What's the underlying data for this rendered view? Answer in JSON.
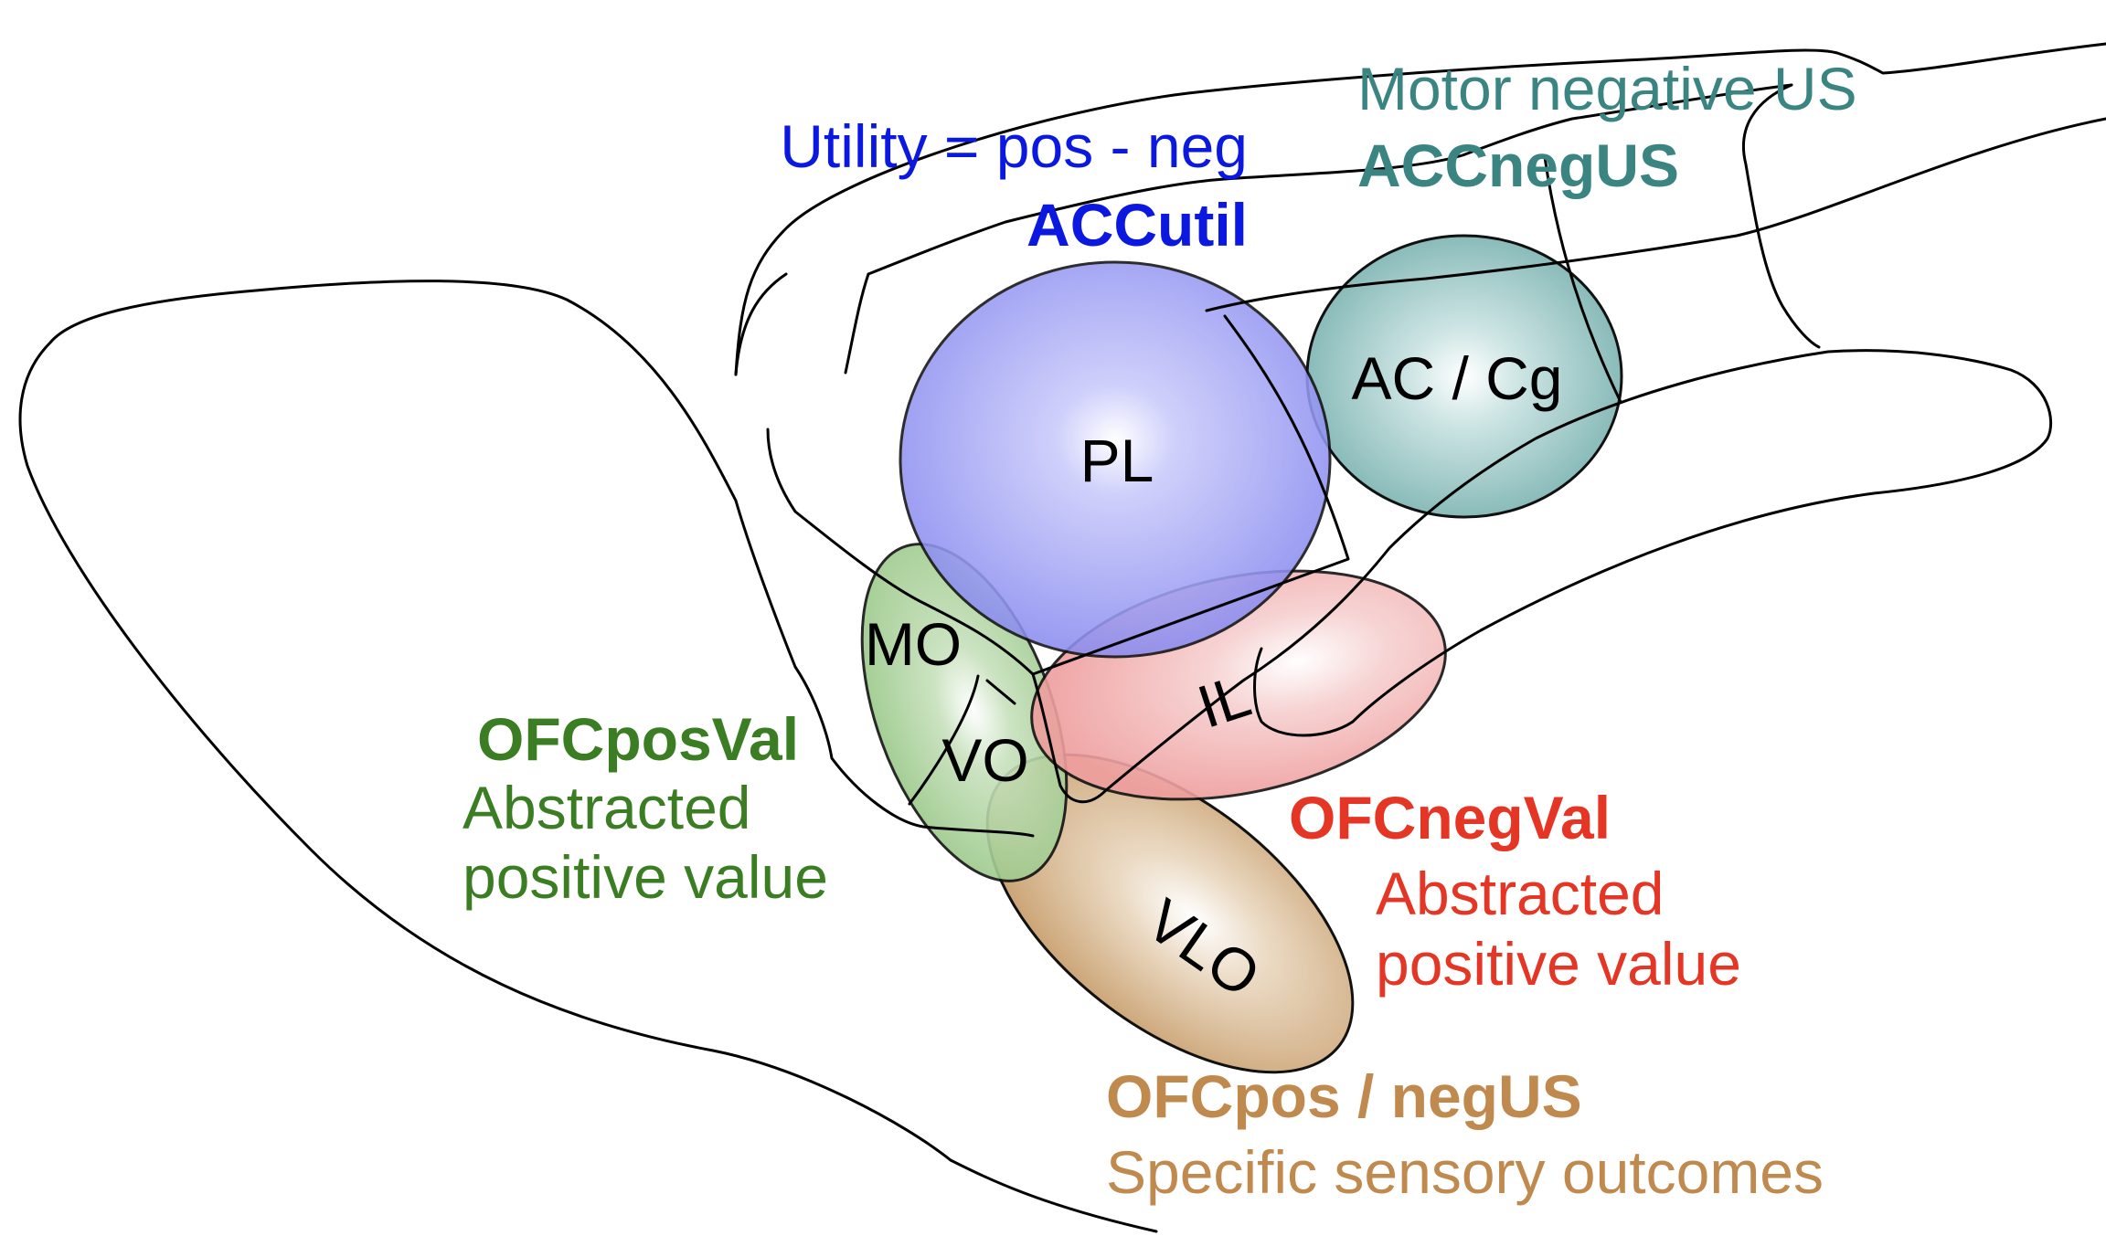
{
  "colors": {
    "utility_blue": "#0a18e0",
    "motor_teal": "#3a8582",
    "ofc_green": "#3a7d22",
    "ofc_red": "#e53525",
    "ofc_brown": "#c0894e"
  },
  "regions": {
    "pl": "PL",
    "ac_cg": "AC / Cg",
    "mo": "MO",
    "vo": "VO",
    "il": "IL",
    "vlo": "VLO"
  },
  "annotations": {
    "accutil": {
      "line1": "Utility = pos - neg",
      "title": "ACCutil"
    },
    "accnegus": {
      "line1": "Motor negative US",
      "title": "ACCnegUS"
    },
    "ofcposval": {
      "title": "OFCposVal",
      "line1": "Abstracted",
      "line2": "positive value"
    },
    "ofcnegval": {
      "title": "OFCnegVal",
      "line1": "Abstracted",
      "line2": "positive value"
    },
    "ofcposnegus": {
      "title": "OFCpos / negUS",
      "line1": "Specific sensory outcomes"
    }
  }
}
